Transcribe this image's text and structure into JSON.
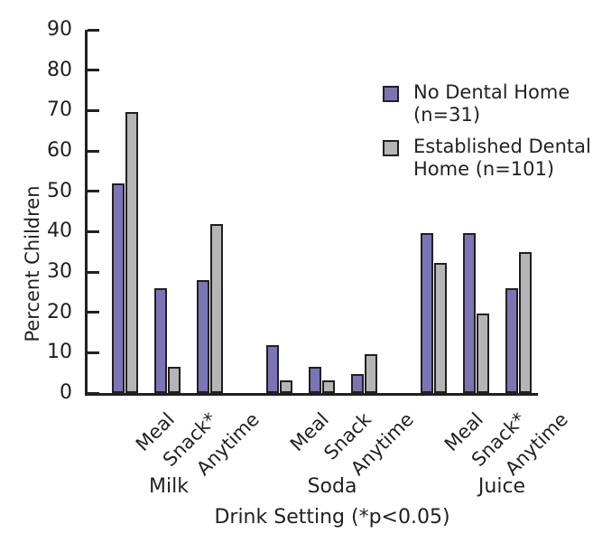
{
  "chart_data": {
    "type": "bar",
    "title": "",
    "ylabel": "Percent Children",
    "xlabel": "Drink Setting (*p<0.05)",
    "ylim": [
      0,
      90
    ],
    "ytick_step": 10,
    "grid": false,
    "legend_position": "upper right",
    "groups": [
      {
        "label": "Milk",
        "settings": [
          "Meal",
          "Snack*",
          "Anytime"
        ]
      },
      {
        "label": "Soda",
        "settings": [
          "Meal",
          "Snack",
          "Anytime"
        ]
      },
      {
        "label": "Juice",
        "settings": [
          "Meal",
          "Snack*",
          "Anytime"
        ]
      }
    ],
    "series": [
      {
        "name": "No Dental Home (n=31)",
        "color": "#7b75b6",
        "values": [
          [
            52.0,
            25.9,
            28.1
          ],
          [
            11.9,
            6.6,
            4.8
          ],
          [
            39.7,
            39.7,
            25.9
          ]
        ]
      },
      {
        "name": "Established Dental Home (n=101)",
        "color": "#b5b4b6",
        "values": [
          [
            69.7,
            6.6,
            41.9
          ],
          [
            3.2,
            3.2,
            9.7
          ],
          [
            32.3,
            19.8,
            34.9
          ]
        ]
      }
    ],
    "legend": [
      {
        "lines": "No Dental Home\n(n=31)",
        "color": "#7b75b6"
      },
      {
        "lines": "Established Dental\nHome (n=101)",
        "color": "#b5b4b6"
      }
    ],
    "colors": {
      "axis": "#231f20",
      "text": "#231f20",
      "background": "#ffffff"
    }
  }
}
